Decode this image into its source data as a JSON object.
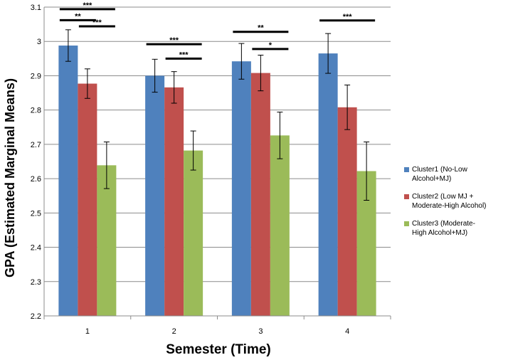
{
  "chart_data": {
    "type": "bar",
    "title": "",
    "xlabel": "Semester (Time)",
    "ylabel": "GPA (Estimated Marginal Means)",
    "ylim": [
      2.2,
      3.1
    ],
    "yticks": [
      "2.2",
      "2.3",
      "2.4",
      "2.5",
      "2.6",
      "2.7",
      "2.8",
      "2.9",
      "3",
      "3.1"
    ],
    "grid": true,
    "legend_position": "right",
    "categories": [
      "1",
      "2",
      "3",
      "4"
    ],
    "series": [
      {
        "name": "Cluster1 (No-Low Alcohol+MJ)",
        "color": "#4F81BD",
        "values": [
          2.988,
          2.9,
          2.942,
          2.965
        ],
        "error": [
          0.046,
          0.048,
          0.052,
          0.058
        ]
      },
      {
        "name": "Cluster2 (Low MJ + Moderate-High Alcohol)",
        "color": "#C0504D",
        "values": [
          2.877,
          2.866,
          2.908,
          2.808
        ],
        "error": [
          0.043,
          0.046,
          0.052,
          0.065
        ]
      },
      {
        "name": "Cluster3 (Moderate-High Alcohol+MJ)",
        "color": "#9BBB59",
        "values": [
          2.639,
          2.682,
          2.726,
          2.622
        ],
        "error": [
          0.068,
          0.057,
          0.068,
          0.085
        ]
      }
    ],
    "significance": [
      {
        "category": 0,
        "from": 0,
        "to": 2,
        "label": "***",
        "y": 3.094
      },
      {
        "category": 0,
        "from": 0,
        "to": 1,
        "label": "**",
        "y": 3.062
      },
      {
        "category": 0,
        "from": 1,
        "to": 2,
        "label": "***",
        "y": 3.044
      },
      {
        "category": 1,
        "from": 0,
        "to": 2,
        "label": "***",
        "y": 2.992
      },
      {
        "category": 1,
        "from": 1,
        "to": 2,
        "label": "***",
        "y": 2.95
      },
      {
        "category": 2,
        "from": 0,
        "to": 2,
        "label": "**",
        "y": 3.028
      },
      {
        "category": 2,
        "from": 1,
        "to": 2,
        "label": "*",
        "y": 2.978
      },
      {
        "category": 3,
        "from": 0,
        "to": 2,
        "label": "***",
        "y": 3.061
      }
    ]
  },
  "legend": {
    "items": [
      {
        "label": "Cluster1 (No-Low\nAlcohol+MJ)",
        "color": "#4F81BD"
      },
      {
        "label": "Cluster2 (Low MJ +\nModerate-High Alcohol)",
        "color": "#C0504D"
      },
      {
        "label": "Cluster3 (Moderate-\nHigh Alcohol+MJ)",
        "color": "#9BBB59"
      }
    ]
  }
}
